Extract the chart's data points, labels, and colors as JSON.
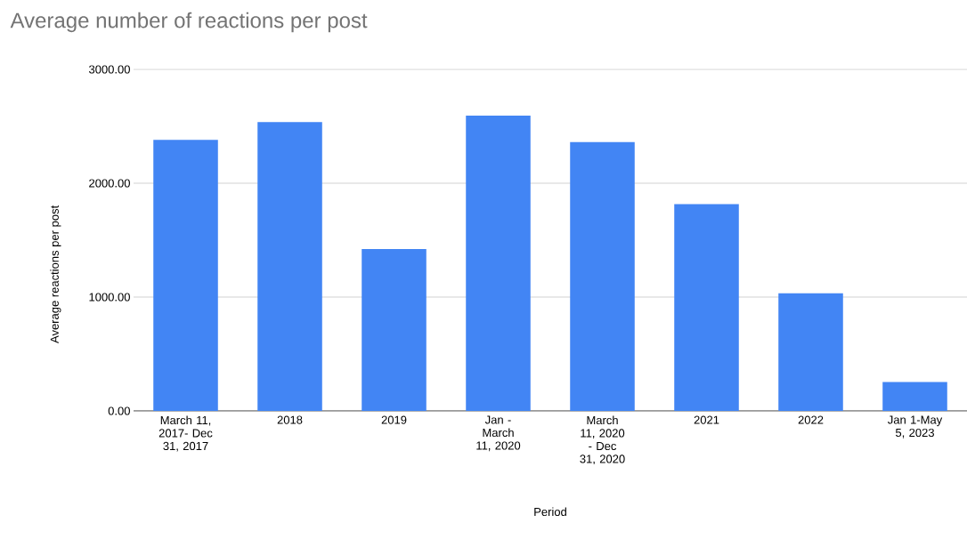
{
  "chart_data": {
    "type": "bar",
    "title": "Average number of reactions per post",
    "xlabel": "Period",
    "ylabel": "Average reactions per post",
    "categories": [
      "March 11, 2017- Dec 31, 2017",
      "2018",
      "2019",
      "Jan - March 11, 2020",
      "March 11, 2020 - Dec 31, 2020",
      "2021",
      "2022",
      "Jan 1-May 5, 2023"
    ],
    "values": [
      2381,
      2537,
      1421,
      2594,
      2361,
      1816,
      1034,
      253
    ],
    "color": "#4285f4",
    "ylim": [
      0,
      3000
    ],
    "yticks": [
      {
        "value": 0,
        "label": "0.00"
      },
      {
        "value": 1000,
        "label": "1000.00"
      },
      {
        "value": 2000,
        "label": "2000.00"
      },
      {
        "value": 3000,
        "label": "3000.00"
      }
    ],
    "grid": "y"
  }
}
